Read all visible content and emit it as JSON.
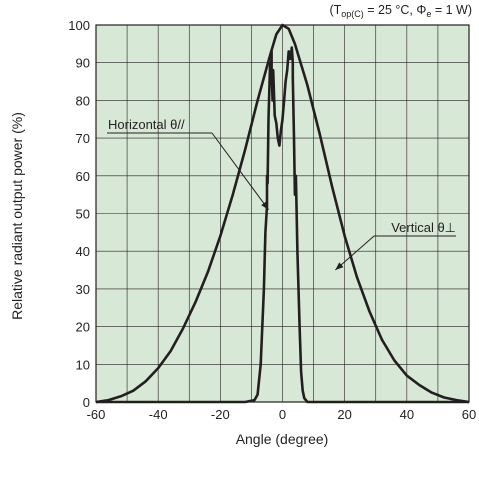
{
  "chart_data": {
    "type": "line",
    "condition": {
      "prefix": "(T",
      "sub": "op(C)",
      "middle": " = 25 °C, Φ",
      "sub2": "e",
      "suffix": " = 1 W)"
    },
    "xlabel": "Angle (degree)",
    "ylabel": "Relative radiant output power (%)",
    "xlim": [
      -60,
      60
    ],
    "ylim": [
      0,
      100
    ],
    "xticks": [
      -60,
      -40,
      -20,
      0,
      20,
      40,
      60
    ],
    "yticks": [
      0,
      10,
      20,
      30,
      40,
      50,
      60,
      70,
      80,
      90,
      100
    ],
    "grid": true,
    "colors": {
      "plot_background": "#d8e8d6",
      "grid": "#231f20",
      "line": "#231f20"
    },
    "series": [
      {
        "name": "Vertical θ⊥",
        "x": [
          -60,
          -56,
          -52,
          -48,
          -44,
          -40,
          -36,
          -32,
          -28,
          -24,
          -20,
          -16,
          -12,
          -8,
          -4,
          -2,
          0,
          2,
          4,
          8,
          12,
          16,
          20,
          24,
          28,
          32,
          36,
          40,
          44,
          48,
          52,
          56,
          60
        ],
        "y": [
          0,
          0.5,
          1.5,
          3,
          5.5,
          9,
          13.5,
          19.5,
          26.5,
          34.5,
          44,
          55,
          67,
          80,
          92,
          97.5,
          100,
          99,
          95,
          84,
          71,
          57,
          44,
          33,
          24,
          16.5,
          11,
          7,
          4.5,
          2.5,
          1.2,
          0.5,
          0
        ]
      },
      {
        "name": "Horizontal θ//",
        "x": [
          -60,
          -20,
          -12,
          -9,
          -8,
          -7,
          -6,
          -5.5,
          -5,
          -5,
          -4.8,
          -4.5,
          -4,
          -3.8,
          -3.5,
          -3.5,
          -3.2,
          -3,
          -2.5,
          -2,
          -1.5,
          -1,
          -0.5,
          0,
          0.5,
          1,
          1.5,
          2,
          2.5,
          3,
          3.3,
          3.3,
          3.7,
          4,
          4.3,
          4.8,
          5.5,
          6,
          6.5,
          7,
          8,
          9,
          12,
          20,
          60
        ],
        "y": [
          0,
          0,
          0,
          0.5,
          2,
          10,
          30,
          45,
          52,
          60,
          58,
          75,
          90,
          85,
          93,
          88,
          80,
          88,
          76,
          74,
          70,
          68,
          72,
          75,
          80,
          85,
          88,
          93,
          91,
          94,
          90,
          86,
          70,
          55,
          60,
          40,
          20,
          8,
          3,
          1,
          0,
          0,
          0,
          0,
          0
        ]
      }
    ]
  }
}
